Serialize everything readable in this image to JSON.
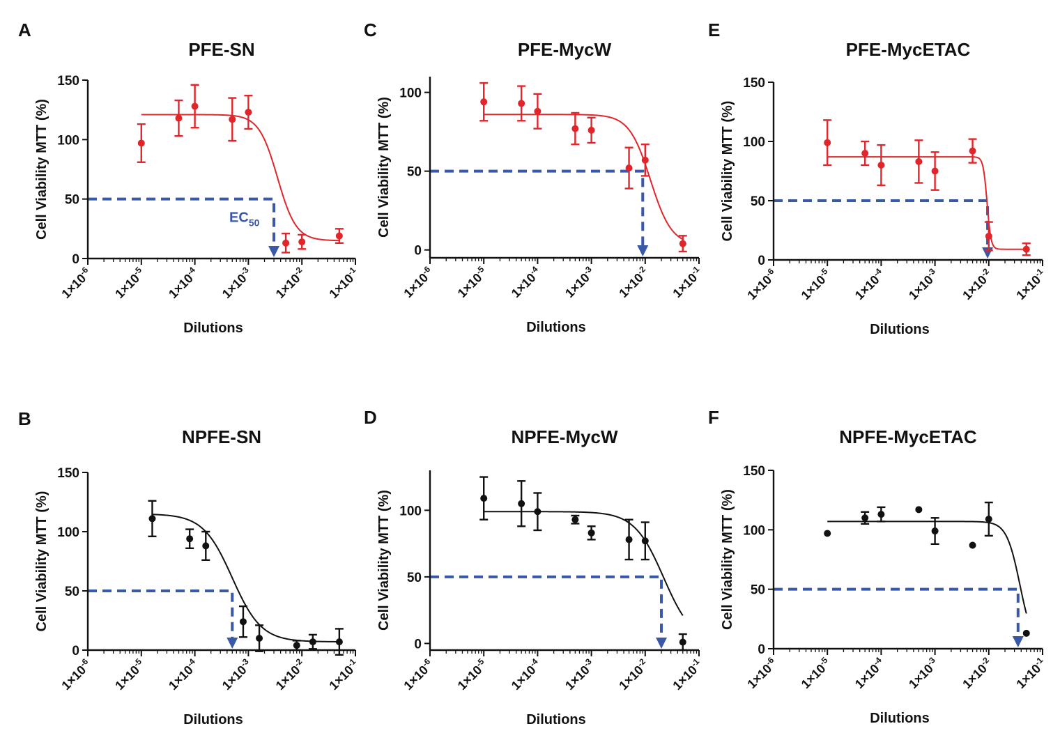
{
  "figure": {
    "shared": {
      "xlabel": "Dilutions",
      "ylabel": "Cell Viability MTT (%)",
      "x_tick_prefix": "1×10",
      "x_tick_exponents": [
        "-6",
        "-5",
        "-4",
        "-3",
        "-2",
        "-1"
      ],
      "ec50_marker_color": "#3a58a8"
    }
  },
  "chart_data": [
    {
      "panel": "A",
      "title": "PFE-SN",
      "type": "scatter",
      "color": "#e0262a",
      "x_scale": "log",
      "xlim": [
        1e-06,
        0.1
      ],
      "ylim": [
        0,
        150
      ],
      "yticks": [
        0,
        50,
        100,
        150
      ],
      "x": [
        1e-05,
        5e-05,
        0.0001,
        0.0005,
        0.001,
        0.005,
        0.01,
        0.05
      ],
      "y": [
        97,
        118,
        128,
        117,
        123,
        13,
        14,
        19
      ],
      "err": [
        16,
        15,
        18,
        18,
        14,
        8,
        6,
        6
      ],
      "fit": {
        "top": 121,
        "bottom": 15,
        "ec50": 0.0035,
        "hill": 2.5,
        "x_start": 1e-05,
        "x_end": 0.05
      },
      "ec50_marker": {
        "x": 0.003,
        "y": 50,
        "label": "EC",
        "label_sub": "50"
      }
    },
    {
      "panel": "B",
      "title": "NPFE-SN",
      "type": "scatter",
      "color": "#111111",
      "x_scale": "log",
      "xlim": [
        1e-06,
        0.1
      ],
      "ylim": [
        0,
        150
      ],
      "yticks": [
        0,
        50,
        100,
        150
      ],
      "x": [
        1.6e-05,
        8e-05,
        0.00016,
        0.0008,
        0.0016,
        0.008,
        0.016,
        0.05
      ],
      "y": [
        111,
        94,
        88,
        24,
        10,
        4,
        7,
        7
      ],
      "err": [
        15,
        8,
        12,
        13,
        11,
        4,
        6,
        11
      ],
      "fit": {
        "top": 115,
        "bottom": 7,
        "ec50": 0.0005,
        "hill": 1.6,
        "x_start": 1.6e-05,
        "x_end": 0.05
      },
      "ec50_marker": {
        "x": 0.0005,
        "y": 50
      }
    },
    {
      "panel": "C",
      "title": "PFE-MycW",
      "type": "scatter",
      "color": "#e0262a",
      "x_scale": "log",
      "xlim": [
        1e-06,
        0.1
      ],
      "ylim": [
        -5,
        110
      ],
      "yticks": [
        0,
        50,
        100
      ],
      "x": [
        1e-05,
        5e-05,
        0.0001,
        0.0005,
        0.001,
        0.005,
        0.01,
        0.05
      ],
      "y": [
        94,
        93,
        88,
        77,
        76,
        52,
        57,
        4
      ],
      "err": [
        12,
        11,
        11,
        10,
        8,
        13,
        10,
        5
      ],
      "fit": {
        "top": 86,
        "bottom": 3,
        "ec50": 0.0125,
        "hill": 2.2,
        "x_start": 1e-05,
        "x_end": 0.05
      },
      "ec50_marker": {
        "x": 0.009,
        "y": 50
      }
    },
    {
      "panel": "D",
      "title": "NPFE-MycW",
      "type": "scatter",
      "color": "#111111",
      "x_scale": "log",
      "xlim": [
        1e-06,
        0.1
      ],
      "ylim": [
        -5,
        130
      ],
      "yticks": [
        0,
        50,
        100
      ],
      "x": [
        1e-05,
        5e-05,
        0.0001,
        0.0005,
        0.001,
        0.005,
        0.01,
        0.05
      ],
      "y": [
        109,
        105,
        99,
        93,
        83,
        78,
        77,
        1
      ],
      "err": [
        16,
        17,
        14,
        3,
        5,
        15,
        14,
        6
      ],
      "fit": {
        "top": 99,
        "bottom": 0,
        "ec50": 0.022,
        "hill": 1.6,
        "x_start": 1e-05,
        "x_end": 0.05
      },
      "ec50_marker": {
        "x": 0.02,
        "y": 50
      }
    },
    {
      "panel": "E",
      "title": "PFE-MycETAC",
      "type": "scatter",
      "color": "#e0262a",
      "x_scale": "log",
      "xlim": [
        1e-06,
        0.1
      ],
      "ylim": [
        0,
        150
      ],
      "yticks": [
        0,
        50,
        100,
        150
      ],
      "x": [
        1e-05,
        5e-05,
        0.0001,
        0.0005,
        0.001,
        0.005,
        0.01,
        0.05
      ],
      "y": [
        99,
        90,
        80,
        83,
        75,
        92,
        20,
        9
      ],
      "err": [
        19,
        10,
        17,
        18,
        16,
        10,
        12,
        5
      ],
      "fit": {
        "top": 87,
        "bottom": 9,
        "ec50": 0.0093,
        "hill": 12,
        "x_start": 1e-05,
        "x_end": 0.05
      },
      "ec50_marker": {
        "x": 0.0095,
        "y": 50
      }
    },
    {
      "panel": "F",
      "title": "NPFE-MycETAC",
      "type": "scatter",
      "color": "#111111",
      "x_scale": "log",
      "xlim": [
        1e-06,
        0.1
      ],
      "ylim": [
        0,
        150
      ],
      "yticks": [
        0,
        50,
        100,
        150
      ],
      "x": [
        1e-05,
        5e-05,
        0.0001,
        0.0005,
        0.001,
        0.005,
        0.01,
        0.05
      ],
      "y": [
        97,
        110,
        113,
        117,
        99,
        87,
        109,
        13
      ],
      "err": [
        0,
        5,
        6,
        0,
        11,
        0,
        14,
        0
      ],
      "fit": {
        "top": 107,
        "bottom": 0,
        "ec50": 0.038,
        "hill": 3.5,
        "x_start": 1e-05,
        "x_end": 0.05
      },
      "ec50_marker": {
        "x": 0.035,
        "y": 50
      }
    }
  ]
}
